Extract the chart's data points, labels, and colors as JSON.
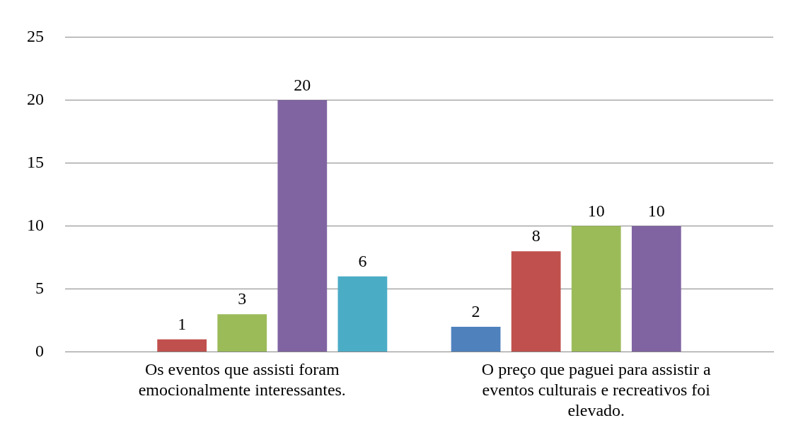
{
  "chart_data": {
    "type": "bar",
    "categories": [
      "Os eventos que assisti foram emocionalmente interessantes.",
      "O preço que paguei para assistir a eventos culturais e recreativos foi elevado."
    ],
    "series": [
      {
        "color": "#4f81bd",
        "values": [
          null,
          2
        ]
      },
      {
        "color": "#c0504d",
        "values": [
          1,
          8
        ]
      },
      {
        "color": "#9bbb59",
        "values": [
          3,
          10
        ]
      },
      {
        "color": "#8064a2",
        "values": [
          20,
          10
        ]
      },
      {
        "color": "#4bacc6",
        "values": [
          6,
          null
        ]
      }
    ],
    "ylim": [
      0,
      25
    ],
    "yticks": [
      0,
      5,
      10,
      15,
      20,
      25
    ],
    "grid": "y",
    "data_labels": true
  }
}
